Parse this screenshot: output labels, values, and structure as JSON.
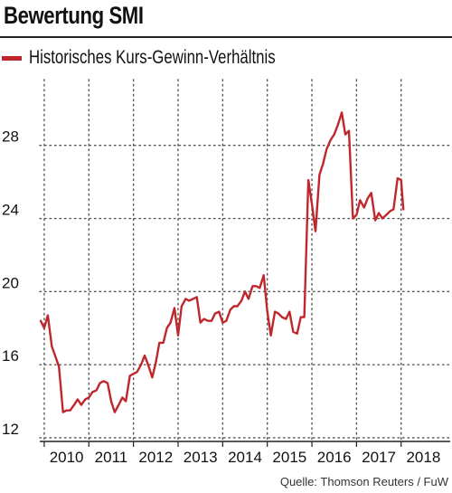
{
  "chart_data": {
    "type": "line",
    "title": "Bewertung SMI",
    "xlabel": "",
    "ylabel": "",
    "xlim": [
      2009.4,
      2018.6
    ],
    "ylim": [
      11.8,
      31.6
    ],
    "x_ticks": [
      "2010",
      "2011",
      "2012",
      "2013",
      "2014",
      "2015",
      "2016",
      "2017",
      "2018"
    ],
    "y_ticks": [
      "12",
      "16",
      "20",
      "24",
      "28"
    ],
    "y_tick_values": [
      12,
      16,
      20,
      24,
      28
    ],
    "grid": "dotted",
    "legend": "top-left",
    "series": [
      {
        "name": "Historisches Kurs-Gewinn-Verhältnis",
        "color": "#c0272d",
        "points": [
          [
            2009.42,
            18.4
          ],
          [
            2009.5,
            18.0
          ],
          [
            2009.58,
            18.7
          ],
          [
            2009.67,
            17.0
          ],
          [
            2009.83,
            15.9
          ],
          [
            2009.92,
            13.4
          ],
          [
            2010.0,
            13.5
          ],
          [
            2010.08,
            13.5
          ],
          [
            2010.17,
            13.8
          ],
          [
            2010.25,
            14.1
          ],
          [
            2010.33,
            13.8
          ],
          [
            2010.42,
            14.1
          ],
          [
            2010.5,
            14.2
          ],
          [
            2010.58,
            14.5
          ],
          [
            2010.67,
            14.6
          ],
          [
            2010.75,
            15.0
          ],
          [
            2010.83,
            15.1
          ],
          [
            2010.92,
            15.0
          ],
          [
            2011.0,
            14.0
          ],
          [
            2011.08,
            13.4
          ],
          [
            2011.17,
            13.8
          ],
          [
            2011.25,
            14.2
          ],
          [
            2011.33,
            14.0
          ],
          [
            2011.42,
            15.4
          ],
          [
            2011.5,
            15.5
          ],
          [
            2011.58,
            15.6
          ],
          [
            2011.67,
            16.0
          ],
          [
            2011.75,
            16.5
          ],
          [
            2011.83,
            16.0
          ],
          [
            2011.92,
            15.3
          ],
          [
            2012.0,
            16.1
          ],
          [
            2012.08,
            17.2
          ],
          [
            2012.17,
            17.2
          ],
          [
            2012.25,
            18.0
          ],
          [
            2012.33,
            18.3
          ],
          [
            2012.42,
            19.1
          ],
          [
            2012.5,
            17.6
          ],
          [
            2012.58,
            19.2
          ],
          [
            2012.67,
            19.6
          ],
          [
            2012.75,
            19.5
          ],
          [
            2012.92,
            19.7
          ],
          [
            2013.0,
            18.3
          ],
          [
            2013.08,
            18.5
          ],
          [
            2013.17,
            18.4
          ],
          [
            2013.25,
            18.4
          ],
          [
            2013.33,
            18.8
          ],
          [
            2013.42,
            18.9
          ],
          [
            2013.5,
            18.3
          ],
          [
            2013.58,
            18.4
          ],
          [
            2013.67,
            19.0
          ],
          [
            2013.75,
            19.2
          ],
          [
            2013.83,
            19.2
          ],
          [
            2013.92,
            19.5
          ],
          [
            2014.0,
            20.0
          ],
          [
            2014.08,
            19.6
          ],
          [
            2014.17,
            20.3
          ],
          [
            2014.25,
            20.3
          ],
          [
            2014.33,
            20.2
          ],
          [
            2014.42,
            20.9
          ],
          [
            2014.5,
            18.9
          ],
          [
            2014.58,
            17.6
          ],
          [
            2014.67,
            18.9
          ],
          [
            2014.75,
            18.8
          ],
          [
            2014.83,
            18.6
          ],
          [
            2014.92,
            18.5
          ],
          [
            2015.0,
            18.9
          ],
          [
            2015.08,
            17.8
          ],
          [
            2015.17,
            17.7
          ],
          [
            2015.25,
            18.6
          ],
          [
            2015.33,
            18.6
          ],
          [
            2015.42,
            26.1
          ],
          [
            2015.5,
            24.8
          ],
          [
            2015.58,
            23.3
          ],
          [
            2015.67,
            26.4
          ],
          [
            2015.75,
            27.0
          ],
          [
            2015.83,
            27.8
          ],
          [
            2015.92,
            28.3
          ],
          [
            2016.0,
            28.6
          ],
          [
            2016.08,
            29.1
          ],
          [
            2016.17,
            29.8
          ],
          [
            2016.25,
            28.6
          ],
          [
            2016.33,
            28.8
          ],
          [
            2016.42,
            24.0
          ],
          [
            2016.5,
            24.2
          ],
          [
            2016.58,
            25.0
          ],
          [
            2016.67,
            24.6
          ],
          [
            2016.75,
            25.1
          ],
          [
            2016.83,
            25.4
          ],
          [
            2016.92,
            23.9
          ],
          [
            2017.0,
            24.3
          ],
          [
            2017.08,
            24.0
          ],
          [
            2017.17,
            24.2
          ],
          [
            2017.25,
            24.4
          ],
          [
            2017.33,
            24.5
          ],
          [
            2017.42,
            26.2
          ],
          [
            2017.5,
            26.1
          ],
          [
            2017.55,
            24.5
          ]
        ]
      }
    ]
  },
  "legend": {
    "label": "Historisches Kurs-Gewinn-Verhältnis"
  },
  "source": "Quelle: Thomson Reuters / FuW"
}
